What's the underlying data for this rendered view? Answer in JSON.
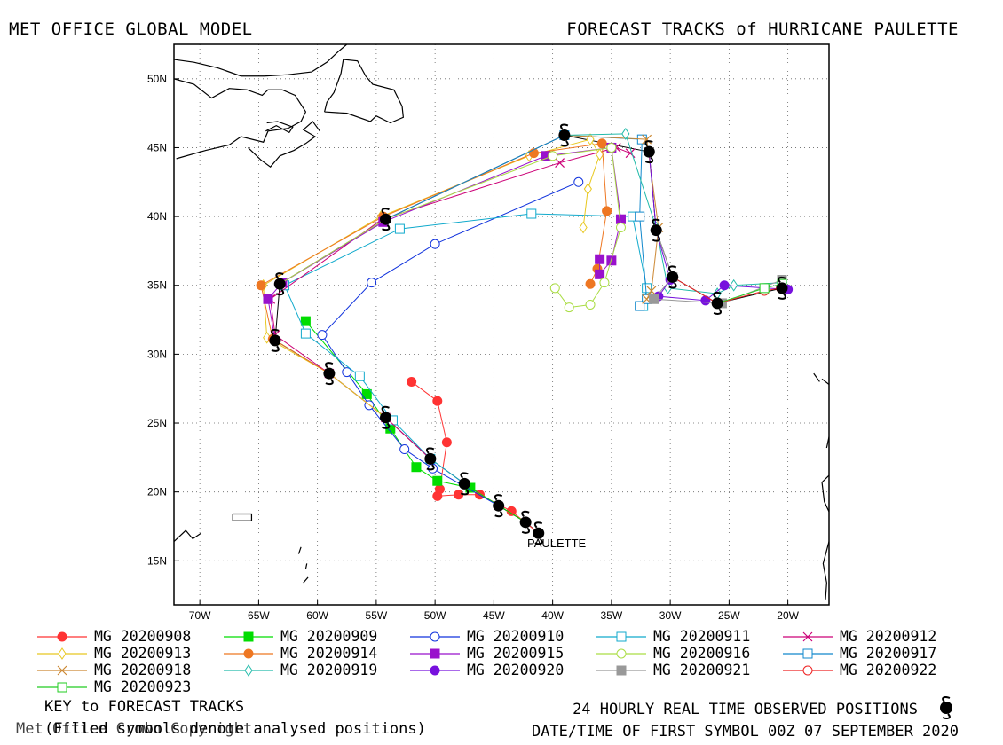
{
  "header": {
    "left_title": "MET OFFICE GLOBAL MODEL",
    "right_title": "FORECAST TRACKS of HURRICANE PAULETTE"
  },
  "chart_data": {
    "type": "scatter",
    "title": "FORECAST TRACKS of HURRICANE PAULETTE",
    "storm_label": "PAULETTE",
    "xlim": [
      -70,
      -15
    ],
    "ylim": [
      12,
      53
    ],
    "x_ticks": [
      -70,
      -65,
      -60,
      -55,
      -50,
      -45,
      -40,
      -35,
      -30,
      -25,
      -20
    ],
    "x_tick_labels": [
      "70W",
      "65W",
      "60W",
      "55W",
      "50W",
      "45W",
      "40W",
      "35W",
      "30W",
      "25W",
      "20W"
    ],
    "y_ticks": [
      15,
      20,
      25,
      30,
      35,
      40,
      45,
      50
    ],
    "y_tick_labels": [
      "15N",
      "20N",
      "25N",
      "30N",
      "35N",
      "40N",
      "45N",
      "50N"
    ],
    "grid": "dotted",
    "observed_positions": [
      [
        -41.2,
        17.0
      ],
      [
        -42.3,
        17.8
      ],
      [
        -44.6,
        19.0
      ],
      [
        -47.5,
        20.6
      ],
      [
        -50.4,
        22.4
      ],
      [
        -54.2,
        25.4
      ],
      [
        -59.0,
        28.6
      ],
      [
        -63.6,
        31.0
      ],
      [
        -63.2,
        35.1
      ],
      [
        -54.2,
        39.8
      ],
      [
        -39.0,
        45.9
      ],
      [
        -31.8,
        44.7
      ],
      [
        -31.2,
        39.0
      ],
      [
        -29.8,
        35.6
      ],
      [
        -26.0,
        33.7
      ],
      [
        -20.5,
        34.8
      ]
    ],
    "series": [
      {
        "name": "MG 20200908",
        "color": "#ff3333",
        "marker": "circle-filled",
        "points": [
          [
            -41.2,
            17.0
          ],
          [
            -43.5,
            18.6
          ],
          [
            -46.2,
            19.8
          ],
          [
            -48.0,
            19.8
          ],
          [
            -49.8,
            19.7
          ],
          [
            -49.6,
            20.2
          ],
          [
            -49.0,
            23.6
          ],
          [
            -49.8,
            26.6
          ],
          [
            -52.0,
            28.0
          ]
        ]
      },
      {
        "name": "MG 20200909",
        "color": "#00dd00",
        "marker": "square-filled",
        "points": [
          [
            -42.3,
            17.8
          ],
          [
            -47.0,
            20.3
          ],
          [
            -49.8,
            20.8
          ],
          [
            -51.6,
            21.8
          ],
          [
            -53.8,
            24.6
          ],
          [
            -55.8,
            27.1
          ],
          [
            -61.0,
            32.4
          ]
        ]
      },
      {
        "name": "MG 20200910",
        "color": "#1133dd",
        "marker": "circle-open",
        "points": [
          [
            -44.6,
            19.0
          ],
          [
            -50.2,
            21.7
          ],
          [
            -52.6,
            23.1
          ],
          [
            -55.6,
            26.3
          ],
          [
            -57.5,
            28.7
          ],
          [
            -59.6,
            31.4
          ],
          [
            -55.4,
            35.2
          ],
          [
            -50.0,
            38.0
          ],
          [
            -37.8,
            42.5
          ]
        ]
      },
      {
        "name": "MG 20200911",
        "color": "#11aacc",
        "marker": "square-open",
        "points": [
          [
            -47.5,
            20.6
          ],
          [
            -50.4,
            22.4
          ],
          [
            -53.6,
            25.2
          ],
          [
            -56.4,
            28.4
          ],
          [
            -61.0,
            31.5
          ],
          [
            -62.8,
            35.0
          ],
          [
            -53.0,
            39.1
          ],
          [
            -41.8,
            40.2
          ],
          [
            -33.2,
            40.0
          ],
          [
            -32.0,
            34.8
          ],
          [
            -32.3,
            33.5
          ]
        ]
      },
      {
        "name": "MG 20200912",
        "color": "#cc0077",
        "marker": "x",
        "points": [
          [
            -50.4,
            22.4
          ],
          [
            -54.2,
            25.4
          ],
          [
            -59.0,
            28.6
          ],
          [
            -63.6,
            31.4
          ],
          [
            -64.0,
            34.0
          ],
          [
            -54.5,
            39.8
          ],
          [
            -39.4,
            43.9
          ],
          [
            -34.6,
            45.0
          ],
          [
            -33.4,
            44.6
          ]
        ]
      },
      {
        "name": "MG 20200913",
        "color": "#e8c820",
        "marker": "diamond-open",
        "points": [
          [
            -54.2,
            25.4
          ],
          [
            -59.0,
            28.6
          ],
          [
            -64.3,
            31.2
          ],
          [
            -64.6,
            35.0
          ],
          [
            -54.6,
            40.0
          ],
          [
            -42.0,
            44.4
          ],
          [
            -36.8,
            45.6
          ],
          [
            -36.0,
            44.5
          ],
          [
            -37.0,
            42.0
          ],
          [
            -37.4,
            39.2
          ]
        ]
      },
      {
        "name": "MG 20200914",
        "color": "#ee7722",
        "marker": "circle-filled",
        "points": [
          [
            -59.0,
            28.6
          ],
          [
            -63.8,
            31.1
          ],
          [
            -64.8,
            35.0
          ],
          [
            -54.4,
            40.0
          ],
          [
            -41.6,
            44.6
          ],
          [
            -35.8,
            45.3
          ],
          [
            -35.4,
            40.4
          ],
          [
            -36.2,
            36.2
          ],
          [
            -36.8,
            35.1
          ]
        ]
      },
      {
        "name": "MG 20200915",
        "color": "#9911cc",
        "marker": "square-filled",
        "points": [
          [
            -63.6,
            31.0
          ],
          [
            -64.2,
            34.0
          ],
          [
            -63.0,
            35.2
          ],
          [
            -54.4,
            39.6
          ],
          [
            -40.6,
            44.4
          ],
          [
            -35.0,
            45.0
          ],
          [
            -34.2,
            39.8
          ],
          [
            -35.0,
            36.8
          ],
          [
            -36.0,
            35.8
          ],
          [
            -36.0,
            36.9
          ]
        ]
      },
      {
        "name": "MG 20200916",
        "color": "#aadd44",
        "marker": "circle-open",
        "points": [
          [
            -63.2,
            35.1
          ],
          [
            -54.2,
            39.8
          ],
          [
            -40.0,
            44.4
          ],
          [
            -35.0,
            45.0
          ],
          [
            -34.2,
            39.2
          ],
          [
            -35.6,
            35.2
          ],
          [
            -36.8,
            33.6
          ],
          [
            -38.6,
            33.4
          ],
          [
            -39.8,
            34.8
          ]
        ]
      },
      {
        "name": "MG 20200917",
        "color": "#1188cc",
        "marker": "square-open",
        "points": [
          [
            -54.2,
            39.8
          ],
          [
            -39.0,
            45.9
          ],
          [
            -32.4,
            45.6
          ],
          [
            -32.6,
            40.0
          ],
          [
            -32.0,
            34.0
          ],
          [
            -32.6,
            33.5
          ]
        ]
      },
      {
        "name": "MG 20200918",
        "color": "#cc8833",
        "marker": "x",
        "points": [
          [
            -39.0,
            45.9
          ],
          [
            -32.0,
            45.6
          ],
          [
            -31.0,
            39.2
          ],
          [
            -31.6,
            34.6
          ],
          [
            -32.0,
            34.0
          ]
        ]
      },
      {
        "name": "MG 20200919",
        "color": "#22bbaa",
        "marker": "diamond-open",
        "points": [
          [
            -39.0,
            45.9
          ],
          [
            -33.8,
            46.0
          ],
          [
            -31.2,
            39.2
          ],
          [
            -30.2,
            34.8
          ],
          [
            -26.0,
            34.4
          ],
          [
            -24.6,
            35.0
          ],
          [
            -20.4,
            35.2
          ]
        ]
      },
      {
        "name": "MG 20200920",
        "color": "#7711dd",
        "marker": "circle-filled",
        "points": [
          [
            -31.8,
            44.7
          ],
          [
            -31.2,
            39.0
          ],
          [
            -30.0,
            35.4
          ],
          [
            -31.0,
            34.2
          ],
          [
            -27.0,
            33.9
          ],
          [
            -25.4,
            35.0
          ],
          [
            -20.0,
            34.7
          ]
        ]
      },
      {
        "name": "MG 20200921",
        "color": "#999999",
        "marker": "square-filled",
        "points": [
          [
            -31.2,
            39.0
          ],
          [
            -29.8,
            35.6
          ],
          [
            -31.4,
            34.0
          ],
          [
            -25.6,
            33.7
          ],
          [
            -20.5,
            35.4
          ]
        ]
      },
      {
        "name": "MG 20200922",
        "color": "#ee2222",
        "marker": "circle-open",
        "points": [
          [
            -29.8,
            35.6
          ],
          [
            -26.0,
            33.7
          ],
          [
            -22.0,
            34.6
          ],
          [
            -20.6,
            34.8
          ]
        ]
      },
      {
        "name": "MG 20200923",
        "color": "#22cc22",
        "marker": "square-open",
        "points": [
          [
            -26.0,
            33.7
          ],
          [
            -22.0,
            34.8
          ],
          [
            -20.5,
            35.1
          ]
        ]
      }
    ]
  },
  "footer": {
    "key_title": "KEY to FORECAST TRACKS",
    "key_note": "(Filled symbols denote analysed positions)",
    "copyright": "Met Office Crown Copyright",
    "observed_label": "24 HOURLY REAL TIME OBSERVED POSITIONS",
    "date_label": "DATE/TIME OF FIRST SYMBOL 00Z 07 SEPTEMBER 2020"
  }
}
